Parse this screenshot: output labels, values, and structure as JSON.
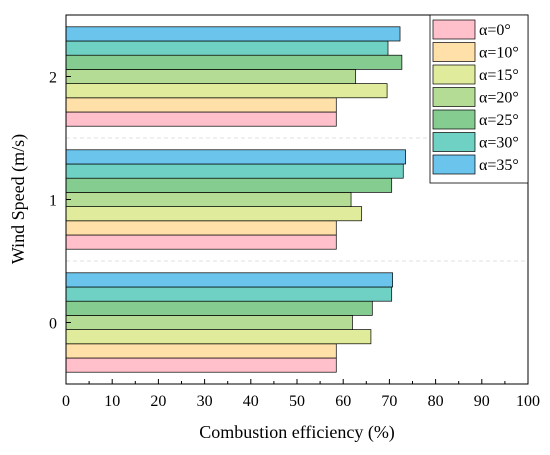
{
  "chart_data": {
    "type": "bar",
    "orientation": "horizontal",
    "xlabel": "Combustion efficiency (%)",
    "ylabel": "Wind Speed (m/s)",
    "xlim": [
      0,
      100
    ],
    "xticks": [
      "0",
      "10",
      "20",
      "30",
      "40",
      "50",
      "60",
      "70",
      "80",
      "90",
      "100"
    ],
    "categories": [
      "0",
      "1",
      "2"
    ],
    "grid": false,
    "legend_position": "top-right",
    "series": [
      {
        "name": "α=0°",
        "color": "#FFC0CB",
        "values": [
          58.5,
          58.5,
          58.5
        ]
      },
      {
        "name": "α=10°",
        "color": "#FFE0A8",
        "values": [
          58.5,
          58.5,
          58.5
        ]
      },
      {
        "name": "α=15°",
        "color": "#E0EC9C",
        "values": [
          66.0,
          64.0,
          69.5
        ]
      },
      {
        "name": "α=20°",
        "color": "#B4DC94",
        "values": [
          62.0,
          61.7,
          62.7
        ]
      },
      {
        "name": "α=25°",
        "color": "#84CC90",
        "values": [
          66.3,
          70.5,
          72.7
        ]
      },
      {
        "name": "α=30°",
        "color": "#6FD0C4",
        "values": [
          70.5,
          73.0,
          69.7
        ]
      },
      {
        "name": "α=35°",
        "color": "#6AC4EC",
        "values": [
          70.7,
          73.5,
          72.3
        ]
      }
    ]
  }
}
